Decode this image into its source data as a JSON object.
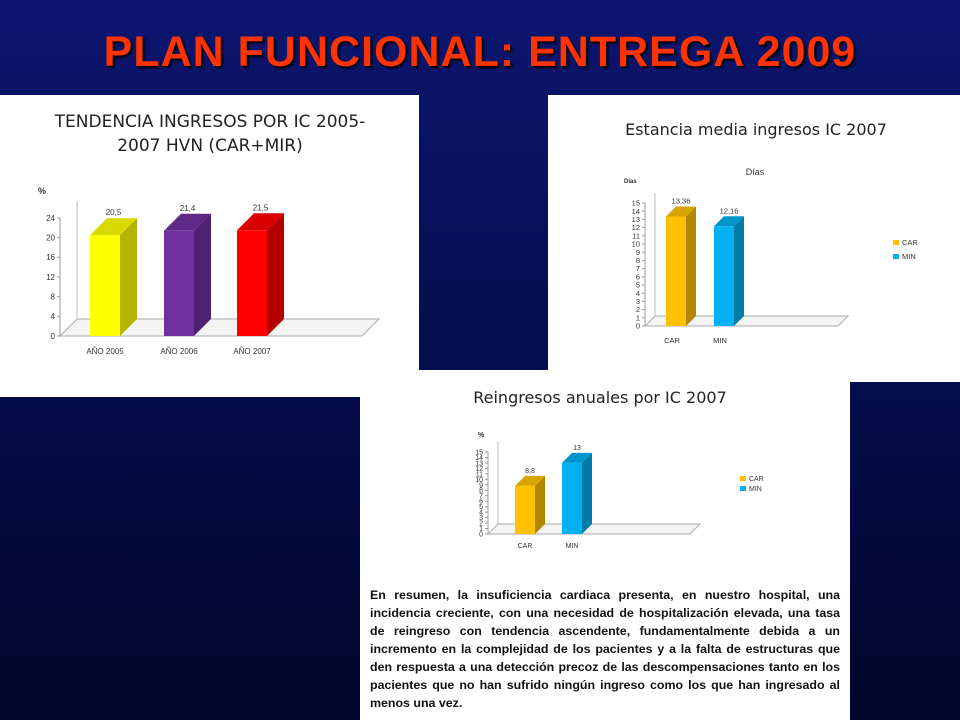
{
  "slide": {
    "title": "PLAN FUNCIONAL: ENTREGA 2009"
  },
  "chart_data": [
    {
      "type": "bar",
      "title": "TENDENCIA INGRESOS POR IC 2005-2007 HVN (CAR+MIR)",
      "title_lines": [
        "TENDENCIA INGRESOS POR IC 2005-",
        "2007 HVN (CAR+MIR)"
      ],
      "ylabel": "%",
      "categories": [
        "AÑO 2005",
        "AÑO 2006",
        "AÑO 2007"
      ],
      "values": [
        20.5,
        21.4,
        21.5
      ],
      "data_labels": [
        "20,5",
        "21,4",
        "21,5"
      ],
      "bar_colors": [
        "#ffff00",
        "#7030a0",
        "#ff0000"
      ],
      "ylim": [
        0,
        24
      ],
      "yticks": [
        "0",
        "4",
        "8",
        "12",
        "16",
        "20",
        "24"
      ],
      "grid": false,
      "legend": "none"
    },
    {
      "type": "bar",
      "title": "Estancia media ingresos IC 2007",
      "subtitle": "Días",
      "ylabel": "Días",
      "categories": [
        "CAR",
        "MIN"
      ],
      "values": [
        13.36,
        12.16
      ],
      "data_labels": [
        "13,36",
        "12,16"
      ],
      "bar_colors": [
        "#ffc000",
        "#00b0f0"
      ],
      "ylim": [
        0,
        15
      ],
      "yticks": [
        "0",
        "1",
        "2",
        "3",
        "4",
        "5",
        "6",
        "7",
        "8",
        "9",
        "10",
        "11",
        "12",
        "13",
        "14",
        "15"
      ],
      "legend": {
        "placement": "right",
        "entries": [
          "CAR",
          "MIN"
        ]
      },
      "grid": false
    },
    {
      "type": "bar",
      "title": "Reingresos anuales por IC 2007",
      "ylabel": "%",
      "categories": [
        "CAR",
        "MIN"
      ],
      "values": [
        8.8,
        13
      ],
      "data_labels": [
        "8,8",
        "13"
      ],
      "bar_colors": [
        "#ffc000",
        "#00b0f0"
      ],
      "ylim": [
        0,
        15
      ],
      "yticks": [
        "0",
        "1",
        "2",
        "3",
        "4",
        "5",
        "6",
        "7",
        "8",
        "9",
        "10",
        "11",
        "12",
        "13",
        "14",
        "15"
      ],
      "legend": {
        "placement": "right",
        "entries": [
          "CAR",
          "MIN"
        ]
      },
      "grid": false
    }
  ],
  "summary": {
    "text": "En resumen, la insuficiencia cardiaca presenta, en nuestro hospital, una incidencia creciente, con una necesidad de hospitalización elevada, una tasa de reingreso con tendencia ascendente, fundamentalmente debida a un incremento en la complejidad de los pacientes y a la falta de estructuras que den respuesta a una detección precoz de las descompensaciones tanto en los pacientes que no han sufrido ningún ingreso como los que han ingresado al menos una vez."
  }
}
